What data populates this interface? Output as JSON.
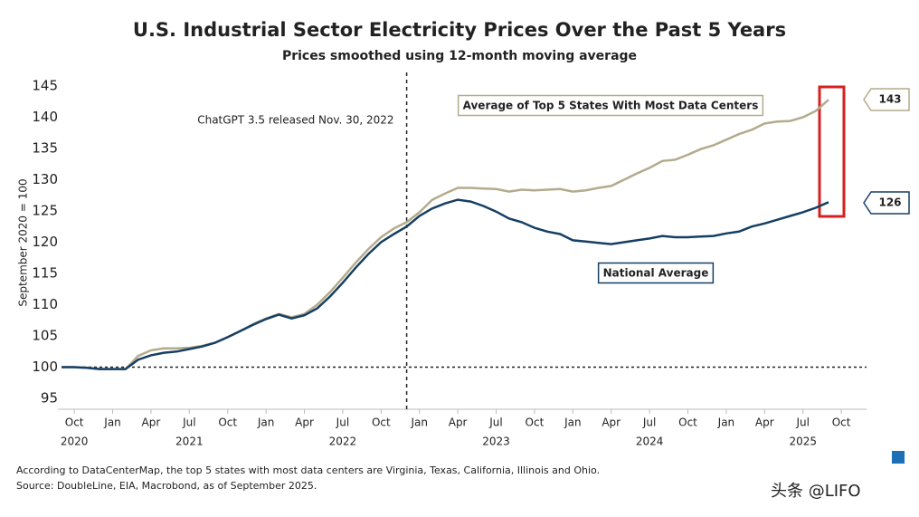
{
  "chart_data": {
    "type": "line",
    "title": "U.S. Industrial Sector Electricity Prices Over the Past 5 Years",
    "subtitle": "Prices smoothed using 12-month moving average",
    "y_label": "September 2020 = 100",
    "categories": [
      null,
      "Oct",
      null,
      null,
      "Jan",
      null,
      null,
      "Apr",
      null,
      null,
      "Jul",
      null,
      null,
      "Oct",
      null,
      null,
      "Jan",
      null,
      null,
      "Apr",
      null,
      null,
      "Jul",
      null,
      null,
      "Oct",
      null,
      null,
      "Jan",
      null,
      null,
      "Apr",
      null,
      null,
      "Jul",
      null,
      null,
      "Oct",
      null,
      null,
      "Jan",
      null,
      null,
      "Apr",
      null,
      null,
      "Jul",
      null,
      null,
      "Oct",
      null,
      null,
      "Jan",
      null,
      null,
      "Apr",
      null,
      null,
      "Jul",
      null,
      null,
      "Oct"
    ],
    "year_labels": [
      "2020",
      "2021",
      "2022",
      "2023",
      "2024",
      "2025"
    ],
    "series": [
      {
        "name": "Average of Top 5 States With Most Data Centers",
        "color": "#b3ab8c",
        "end_label": "143",
        "values": [
          100,
          100,
          99.9,
          99.7,
          99.7,
          99.7,
          101.8,
          102.7,
          103,
          103,
          103.1,
          103.4,
          103.9,
          104.8,
          105.8,
          106.9,
          107.8,
          108.5,
          108,
          108.5,
          110,
          112,
          114.3,
          116.7,
          118.9,
          120.8,
          122.2,
          123.2,
          124.8,
          126.8,
          127.8,
          128.7,
          128.7,
          128.6,
          128.5,
          128.1,
          128.4,
          128.3,
          128.4,
          128.5,
          128.1,
          128.3,
          128.7,
          129,
          130,
          131,
          131.9,
          133,
          133.2,
          134,
          134.9,
          135.5,
          136.4,
          137.3,
          138,
          139,
          139.3,
          139.4,
          140,
          141,
          142.8,
          null
        ]
      },
      {
        "name": "National Average",
        "color": "#163f63",
        "end_label": "126",
        "values": [
          100,
          100,
          99.9,
          99.7,
          99.7,
          99.7,
          101.2,
          101.9,
          102.3,
          102.5,
          102.9,
          103.3,
          103.9,
          104.8,
          105.8,
          106.8,
          107.7,
          108.4,
          107.8,
          108.3,
          109.4,
          111.3,
          113.5,
          115.9,
          118.1,
          120,
          121.3,
          122.5,
          124.2,
          125.4,
          126.2,
          126.8,
          126.5,
          125.8,
          124.9,
          123.8,
          123.2,
          122.3,
          121.7,
          121.3,
          120.3,
          120.1,
          119.9,
          119.7,
          120,
          120.3,
          120.6,
          121,
          120.8,
          120.8,
          120.9,
          121,
          121.4,
          121.7,
          122.5,
          123,
          123.6,
          124.2,
          124.8,
          125.5,
          126.4,
          null
        ]
      }
    ],
    "ylim": [
      94,
      146
    ],
    "yticks": [
      95,
      100,
      105,
      110,
      115,
      120,
      125,
      130,
      135,
      140,
      145
    ],
    "reference_line": 100,
    "event_line": {
      "label": "ChatGPT 3.5 released Nov. 30, 2022",
      "at_category": 27
    },
    "footnotes": [
      "According to DataCenterMap, the top 5 states with most data centers are Virginia, Texas, California, Illinois and Ohio.",
      "Source: DoubleLine, EIA, Macrobond, as of September 2025."
    ],
    "watermark": "头条 @LIFO"
  }
}
